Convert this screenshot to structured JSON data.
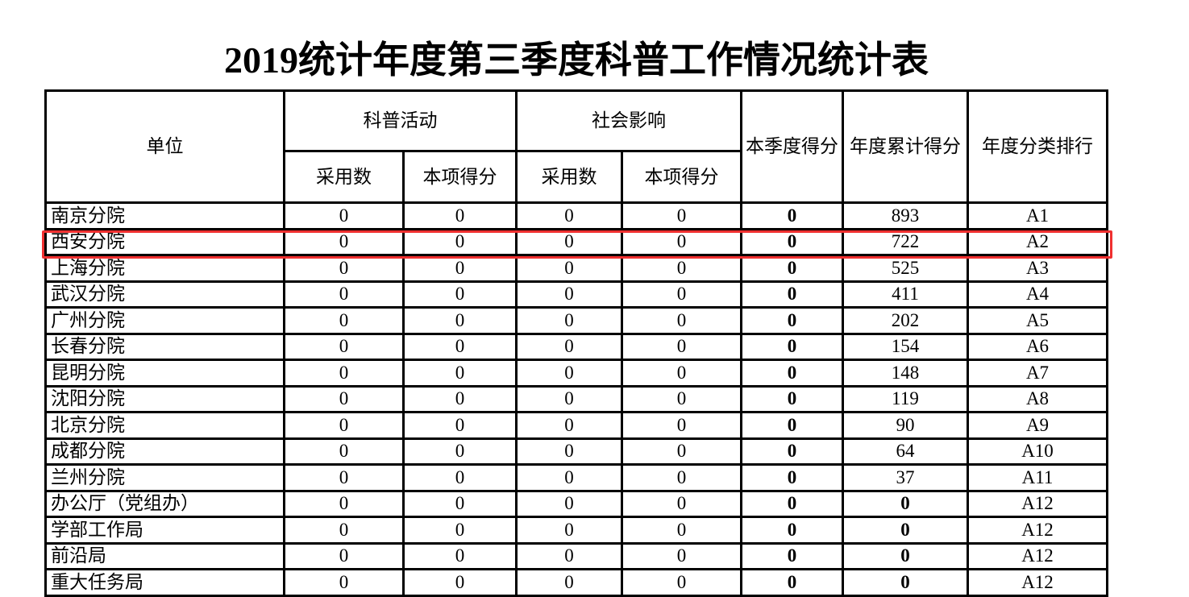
{
  "title": "2019统计年度第三季度科普工作情况统计表",
  "header": {
    "unit": "单位",
    "group1": "科普活动",
    "group2": "社会影响",
    "adopted": "采用数",
    "item_score": "本项得分",
    "quarter_score": "本季度得分",
    "annual_total": "年度累计得分",
    "annual_rank": "年度分类排行"
  },
  "highlight_color": "#f03030",
  "rows": [
    {
      "unit": "南京分院",
      "a1": "0",
      "s1": "0",
      "a2": "0",
      "s2": "0",
      "q": "0",
      "total": "893",
      "rank": "A1"
    },
    {
      "unit": "西安分院",
      "a1": "0",
      "s1": "0",
      "a2": "0",
      "s2": "0",
      "q": "0",
      "total": "722",
      "rank": "A2"
    },
    {
      "unit": "上海分院",
      "a1": "0",
      "s1": "0",
      "a2": "0",
      "s2": "0",
      "q": "0",
      "total": "525",
      "rank": "A3"
    },
    {
      "unit": "武汉分院",
      "a1": "0",
      "s1": "0",
      "a2": "0",
      "s2": "0",
      "q": "0",
      "total": "411",
      "rank": "A4"
    },
    {
      "unit": "广州分院",
      "a1": "0",
      "s1": "0",
      "a2": "0",
      "s2": "0",
      "q": "0",
      "total": "202",
      "rank": "A5"
    },
    {
      "unit": "长春分院",
      "a1": "0",
      "s1": "0",
      "a2": "0",
      "s2": "0",
      "q": "0",
      "total": "154",
      "rank": "A6"
    },
    {
      "unit": "昆明分院",
      "a1": "0",
      "s1": "0",
      "a2": "0",
      "s2": "0",
      "q": "0",
      "total": "148",
      "rank": "A7"
    },
    {
      "unit": "沈阳分院",
      "a1": "0",
      "s1": "0",
      "a2": "0",
      "s2": "0",
      "q": "0",
      "total": "119",
      "rank": "A8"
    },
    {
      "unit": "北京分院",
      "a1": "0",
      "s1": "0",
      "a2": "0",
      "s2": "0",
      "q": "0",
      "total": "90",
      "rank": "A9"
    },
    {
      "unit": "成都分院",
      "a1": "0",
      "s1": "0",
      "a2": "0",
      "s2": "0",
      "q": "0",
      "total": "64",
      "rank": "A10"
    },
    {
      "unit": "兰州分院",
      "a1": "0",
      "s1": "0",
      "a2": "0",
      "s2": "0",
      "q": "0",
      "total": "37",
      "rank": "A11"
    },
    {
      "unit": "办公厅（党组办）",
      "a1": "0",
      "s1": "0",
      "a2": "0",
      "s2": "0",
      "q": "0",
      "total": "0",
      "rank": "A12"
    },
    {
      "unit": "学部工作局",
      "a1": "0",
      "s1": "0",
      "a2": "0",
      "s2": "0",
      "q": "0",
      "total": "0",
      "rank": "A12"
    },
    {
      "unit": "前沿局",
      "a1": "0",
      "s1": "0",
      "a2": "0",
      "s2": "0",
      "q": "0",
      "total": "0",
      "rank": "A12"
    },
    {
      "unit": "重大任务局",
      "a1": "0",
      "s1": "0",
      "a2": "0",
      "s2": "0",
      "q": "0",
      "total": "0",
      "rank": "A12"
    }
  ]
}
